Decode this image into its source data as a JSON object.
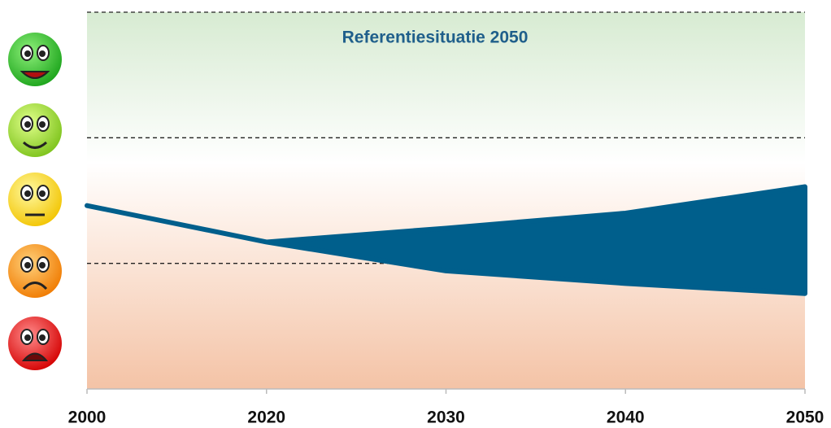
{
  "chart_data": {
    "type": "band",
    "annotation": "Referentiesituatie 2050",
    "categories": [
      "2000",
      "2020",
      "2030",
      "2040",
      "2050"
    ],
    "series": [
      {
        "color": "#005f8c",
        "values": [
          1.46,
          1.17,
          1.28,
          1.4,
          1.61
        ]
      },
      {
        "color": "#005f8c",
        "values": [
          1.46,
          1.17,
          0.94,
          0.84,
          0.76
        ]
      }
    ],
    "ylim": [
      0,
      3
    ],
    "yticks": [
      1,
      2,
      3
    ],
    "grid": true
  }
}
